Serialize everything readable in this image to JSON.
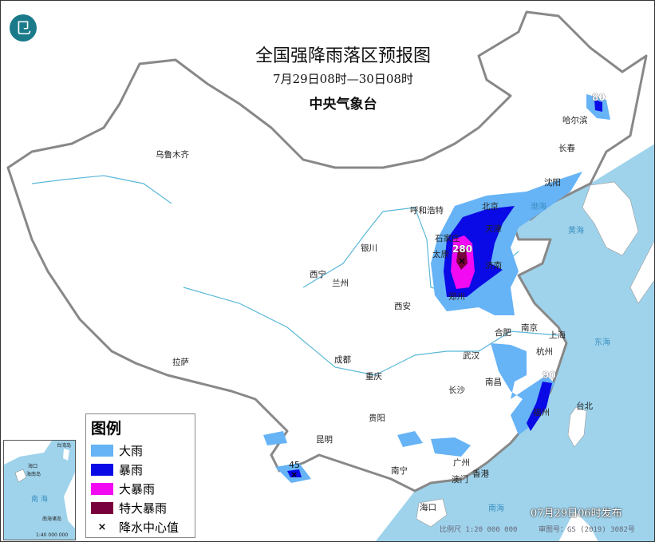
{
  "header": {
    "title": "全国强降雨落区预报图",
    "period": "7月29日08时—30日08时",
    "issuer": "中央气象台",
    "logo_icon": "cma-logo-icon"
  },
  "legend": {
    "title": "图例",
    "items": [
      {
        "label": "大雨",
        "color": "#66b3f5"
      },
      {
        "label": "暴雨",
        "color": "#0a0ae6"
      },
      {
        "label": "大暴雨",
        "color": "#f20af2"
      },
      {
        "label": "特大暴雨",
        "color": "#78003c"
      },
      {
        "label": "降水中心值",
        "symbol": "×"
      }
    ]
  },
  "map": {
    "cities": [
      "乌鲁木齐",
      "呼和浩特",
      "北京",
      "天津",
      "石家庄",
      "太原",
      "济南",
      "郑州",
      "银川",
      "西宁",
      "兰州",
      "西安",
      "成都",
      "重庆",
      "拉萨",
      "贵阳",
      "昆明",
      "南宁",
      "广州",
      "香港",
      "澳门",
      "海口",
      "长沙",
      "武汉",
      "南昌",
      "合肥",
      "南京",
      "上海",
      "杭州",
      "福州",
      "台北",
      "沈阳",
      "长春",
      "哈尔滨"
    ],
    "seas": [
      "渤海",
      "黄海",
      "东海",
      "南海"
    ],
    "rain_centers": [
      "280",
      "90",
      "80",
      "45"
    ],
    "colors": {
      "sea": "#9fd3ec",
      "land": "#ffffff",
      "border": "#888888"
    }
  },
  "inset": {
    "labels": [
      "海口",
      "海南岛",
      "台湾岛",
      "南 海",
      "南海诸岛",
      "1:40 000 000"
    ]
  },
  "footer": {
    "published": "07月29日06时发布",
    "scale": "比例尺 1:20 000 000",
    "review_no": "审图号：GS (2019) 3082号"
  }
}
